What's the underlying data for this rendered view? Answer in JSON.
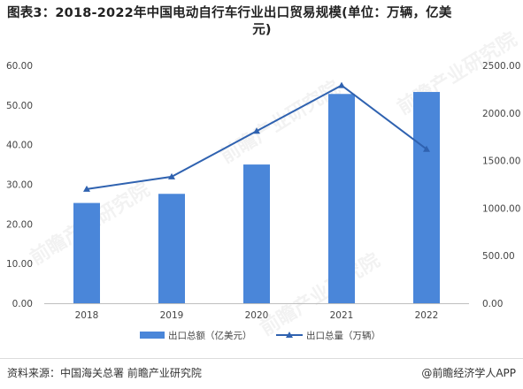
{
  "title_line1": "图表3：2018-2022年中国电动自行车行业出口贸易规模(单位：万辆，亿美",
  "title_line2": "元)",
  "source": "资料来源：中国海关总署 前瞻产业研究院",
  "credit": "@前瞻经济学人APP",
  "watermark": "前瞻产业研究院",
  "colors": {
    "bar": "#4a86d9",
    "line": "#2f62b0",
    "axis": "#bfbfbf",
    "text": "#444444"
  },
  "chart_data": {
    "type": "bar",
    "categories": [
      "2018",
      "2019",
      "2020",
      "2021",
      "2022"
    ],
    "series": [
      {
        "name": "出口总额（亿美元）",
        "type": "bar",
        "axis": "left",
        "values": [
          25.3,
          27.6,
          35.0,
          52.8,
          53.3
        ]
      },
      {
        "name": "出口总量（万辆）",
        "type": "line",
        "axis": "right",
        "values": [
          1200,
          1330,
          1810,
          2290,
          1620
        ]
      }
    ],
    "y_left": {
      "min": 0,
      "max": 60,
      "ticks": [
        "0.00",
        "10.00",
        "20.00",
        "30.00",
        "40.00",
        "50.00",
        "60.00"
      ]
    },
    "y_right": {
      "min": 0,
      "max": 2500,
      "ticks": [
        "0.00",
        "500.00",
        "1000.00",
        "1500.00",
        "2000.00",
        "2500.00"
      ]
    },
    "legend": "bottom",
    "grid": false
  }
}
